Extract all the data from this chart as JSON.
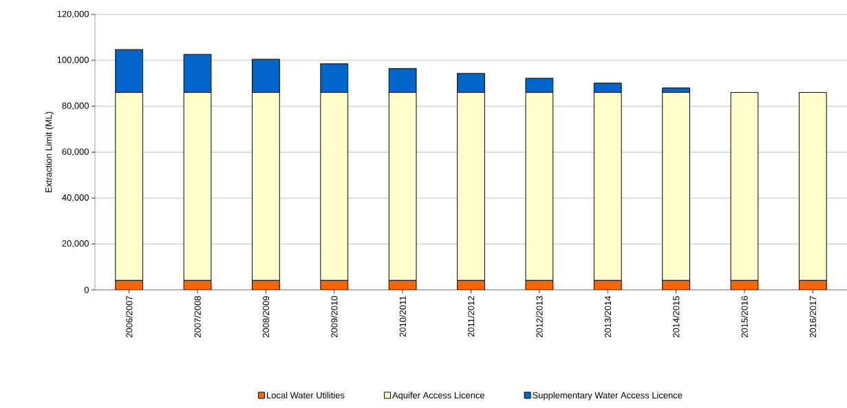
{
  "chart_data": {
    "type": "bar",
    "stacked": true,
    "ylabel": "Extraction Limit (ML)",
    "categories": [
      "2006/2007",
      "2007/2008",
      "2008/2009",
      "2009/2010",
      "2010/2011",
      "2011/2012",
      "2012/2013",
      "2013/2014",
      "2014/2015",
      "2015/2016",
      "2016/2017"
    ],
    "series": [
      {
        "name": "Local Water Utilities",
        "color": "#ff6600",
        "values": [
          4100,
          4100,
          4100,
          4100,
          4100,
          4100,
          4100,
          4100,
          4100,
          4100,
          4100
        ]
      },
      {
        "name": "Aquifer Access Licence",
        "color": "#ffffcc",
        "values": [
          81900,
          81900,
          81900,
          81900,
          81900,
          81900,
          81900,
          81900,
          81900,
          81900,
          81900
        ]
      },
      {
        "name": "Supplementary Water Access Licence",
        "color": "#0066cc",
        "values": [
          18700,
          16600,
          14500,
          12500,
          10400,
          8300,
          6200,
          4100,
          2000,
          0,
          0
        ]
      }
    ],
    "ylim": [
      0,
      120000
    ],
    "yticks": [
      {
        "value": 0,
        "label": "0"
      },
      {
        "value": 20000,
        "label": "20,000"
      },
      {
        "value": 40000,
        "label": "40,000"
      },
      {
        "value": 60000,
        "label": "60,000"
      },
      {
        "value": 80000,
        "label": "80,000"
      },
      {
        "value": 100000,
        "label": "100,000"
      },
      {
        "value": 120000,
        "label": "120,000"
      }
    ],
    "grid": "y",
    "legend": "bottom"
  }
}
